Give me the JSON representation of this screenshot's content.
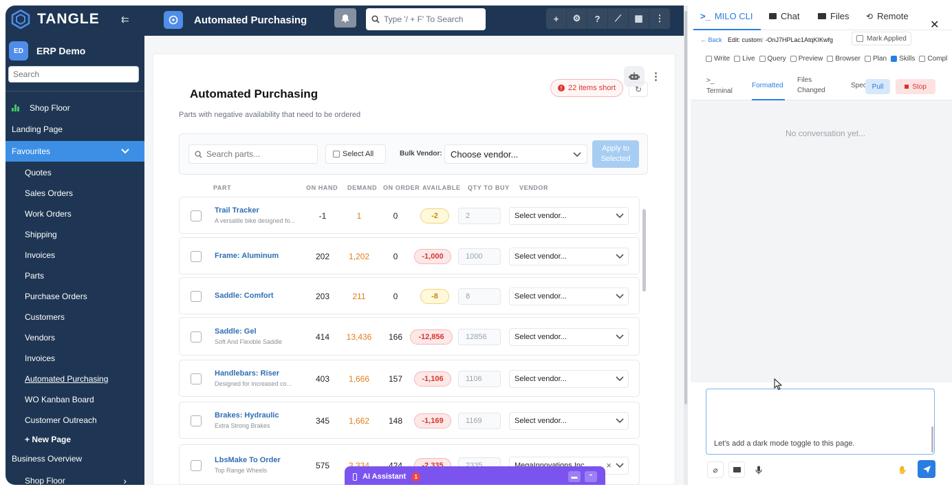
{
  "sidebar": {
    "brand": "TANGLE",
    "org_badge": "ED",
    "org_name": "ERP Demo",
    "search_placeholder": "Search",
    "items": [
      {
        "label": "Shop Floor"
      },
      {
        "label": "Landing Page"
      },
      {
        "label": "Favourites"
      },
      {
        "label": "Quotes"
      },
      {
        "label": "Sales Orders"
      },
      {
        "label": "Work Orders"
      },
      {
        "label": "Shipping"
      },
      {
        "label": "Invoices"
      },
      {
        "label": "Parts"
      },
      {
        "label": "Purchase Orders"
      },
      {
        "label": "Customers"
      },
      {
        "label": "Vendors"
      },
      {
        "label": "Invoices"
      },
      {
        "label": "Automated Purchasing"
      },
      {
        "label": "WO Kanban Board"
      },
      {
        "label": "Customer Outreach"
      },
      {
        "label": "+ New Page"
      },
      {
        "label": "Business Overview"
      },
      {
        "label": "Shop Floor"
      }
    ]
  },
  "header": {
    "title": "Automated Purchasing",
    "search_placeholder": "Type '/ + F' To Search",
    "tools": [
      "+",
      "⚙",
      "?",
      "⟋",
      "▦",
      "⋮"
    ]
  },
  "page": {
    "title": "Automated Purchasing",
    "subtitle": "Parts with negative availability that need to be ordered",
    "short_badge": "22 items short",
    "parts_search_placeholder": "Search parts...",
    "select_all": "Select All",
    "bulk_vendor_label": "Bulk Vendor:",
    "bulk_vendor_value": "Choose vendor...",
    "apply_label": "Apply to Selected",
    "columns": [
      "PART",
      "ON HAND",
      "DEMAND",
      "ON ORDER",
      "AVAILABLE",
      "QTY TO BUY",
      "VENDOR"
    ],
    "rows": [
      {
        "name": "Trail Tracker",
        "desc": "A versatile bike designed fo...",
        "on_hand": "-1",
        "demand": "1",
        "on_order": "0",
        "available": "-2",
        "tone": "yel",
        "qty": "2",
        "vendor": "Select vendor...",
        "clear": ""
      },
      {
        "name": "Frame: Aluminum",
        "desc": "",
        "on_hand": "202",
        "demand": "1,202",
        "on_order": "0",
        "available": "-1,000",
        "tone": "red",
        "qty": "1000",
        "vendor": "Select vendor...",
        "clear": ""
      },
      {
        "name": "Saddle: Comfort",
        "desc": "",
        "on_hand": "203",
        "demand": "211",
        "on_order": "0",
        "available": "-8",
        "tone": "yel",
        "qty": "8",
        "vendor": "Select vendor...",
        "clear": ""
      },
      {
        "name": "Saddle: Gel",
        "desc": "Soft And Flexible Saddle",
        "on_hand": "414",
        "demand": "13,436",
        "on_order": "166",
        "available": "-12,856",
        "tone": "red",
        "qty": "12856",
        "vendor": "Select vendor...",
        "clear": ""
      },
      {
        "name": "Handlebars: Riser",
        "desc": "Designed for increased co...",
        "on_hand": "403",
        "demand": "1,666",
        "on_order": "157",
        "available": "-1,106",
        "tone": "red",
        "qty": "1106",
        "vendor": "Select vendor...",
        "clear": ""
      },
      {
        "name": "Brakes: Hydraulic",
        "desc": "Extra Strong Brakes",
        "on_hand": "345",
        "demand": "1,662",
        "on_order": "148",
        "available": "-1,169",
        "tone": "red",
        "qty": "1169",
        "vendor": "Select vendor...",
        "clear": ""
      },
      {
        "name": "LbsMake To Order",
        "desc": "Top Range Wheels",
        "on_hand": "575",
        "demand": "3,334",
        "on_order": "424",
        "available": "-2,335",
        "tone": "red",
        "qty": "2335",
        "vendor": "MegaInnovations Inc.",
        "clear": "×"
      }
    ],
    "ai_assistant": "AI Assistant",
    "ai_count": "1"
  },
  "panel": {
    "tabs": [
      "MILO CLI",
      "Chat",
      "Files",
      "Remote"
    ],
    "back": "Back",
    "edit_label": "Edit: custom: -OnJ7HPLac1AtqKIKwfg",
    "mark_applied": "Mark Applied",
    "options": [
      {
        "label": "Write",
        "checked": false
      },
      {
        "label": "Live",
        "checked": false
      },
      {
        "label": "Query",
        "checked": false
      },
      {
        "label": "Preview",
        "checked": false
      },
      {
        "label": "Browser",
        "checked": false
      },
      {
        "label": "Plan",
        "checked": false
      },
      {
        "label": "Skills",
        "checked": true
      },
      {
        "label": "Compl",
        "checked": false
      }
    ],
    "subtabs": {
      "terminal_icon": ">_",
      "terminal": "Terminal",
      "formatted": "Formatted",
      "files_line1": "Files",
      "files_line2": "Changed",
      "spec": "Spec"
    },
    "pull": "Pull",
    "stop": "Stop",
    "empty_state": "No conversation yet...",
    "message": "Let's add a dark mode toggle to this page."
  },
  "colors": {
    "sidebar": "#1e3653",
    "accent": "#3d8fe6",
    "ai": "#7b54f0",
    "danger": "#d6362c",
    "demand": "#e07e1a"
  }
}
